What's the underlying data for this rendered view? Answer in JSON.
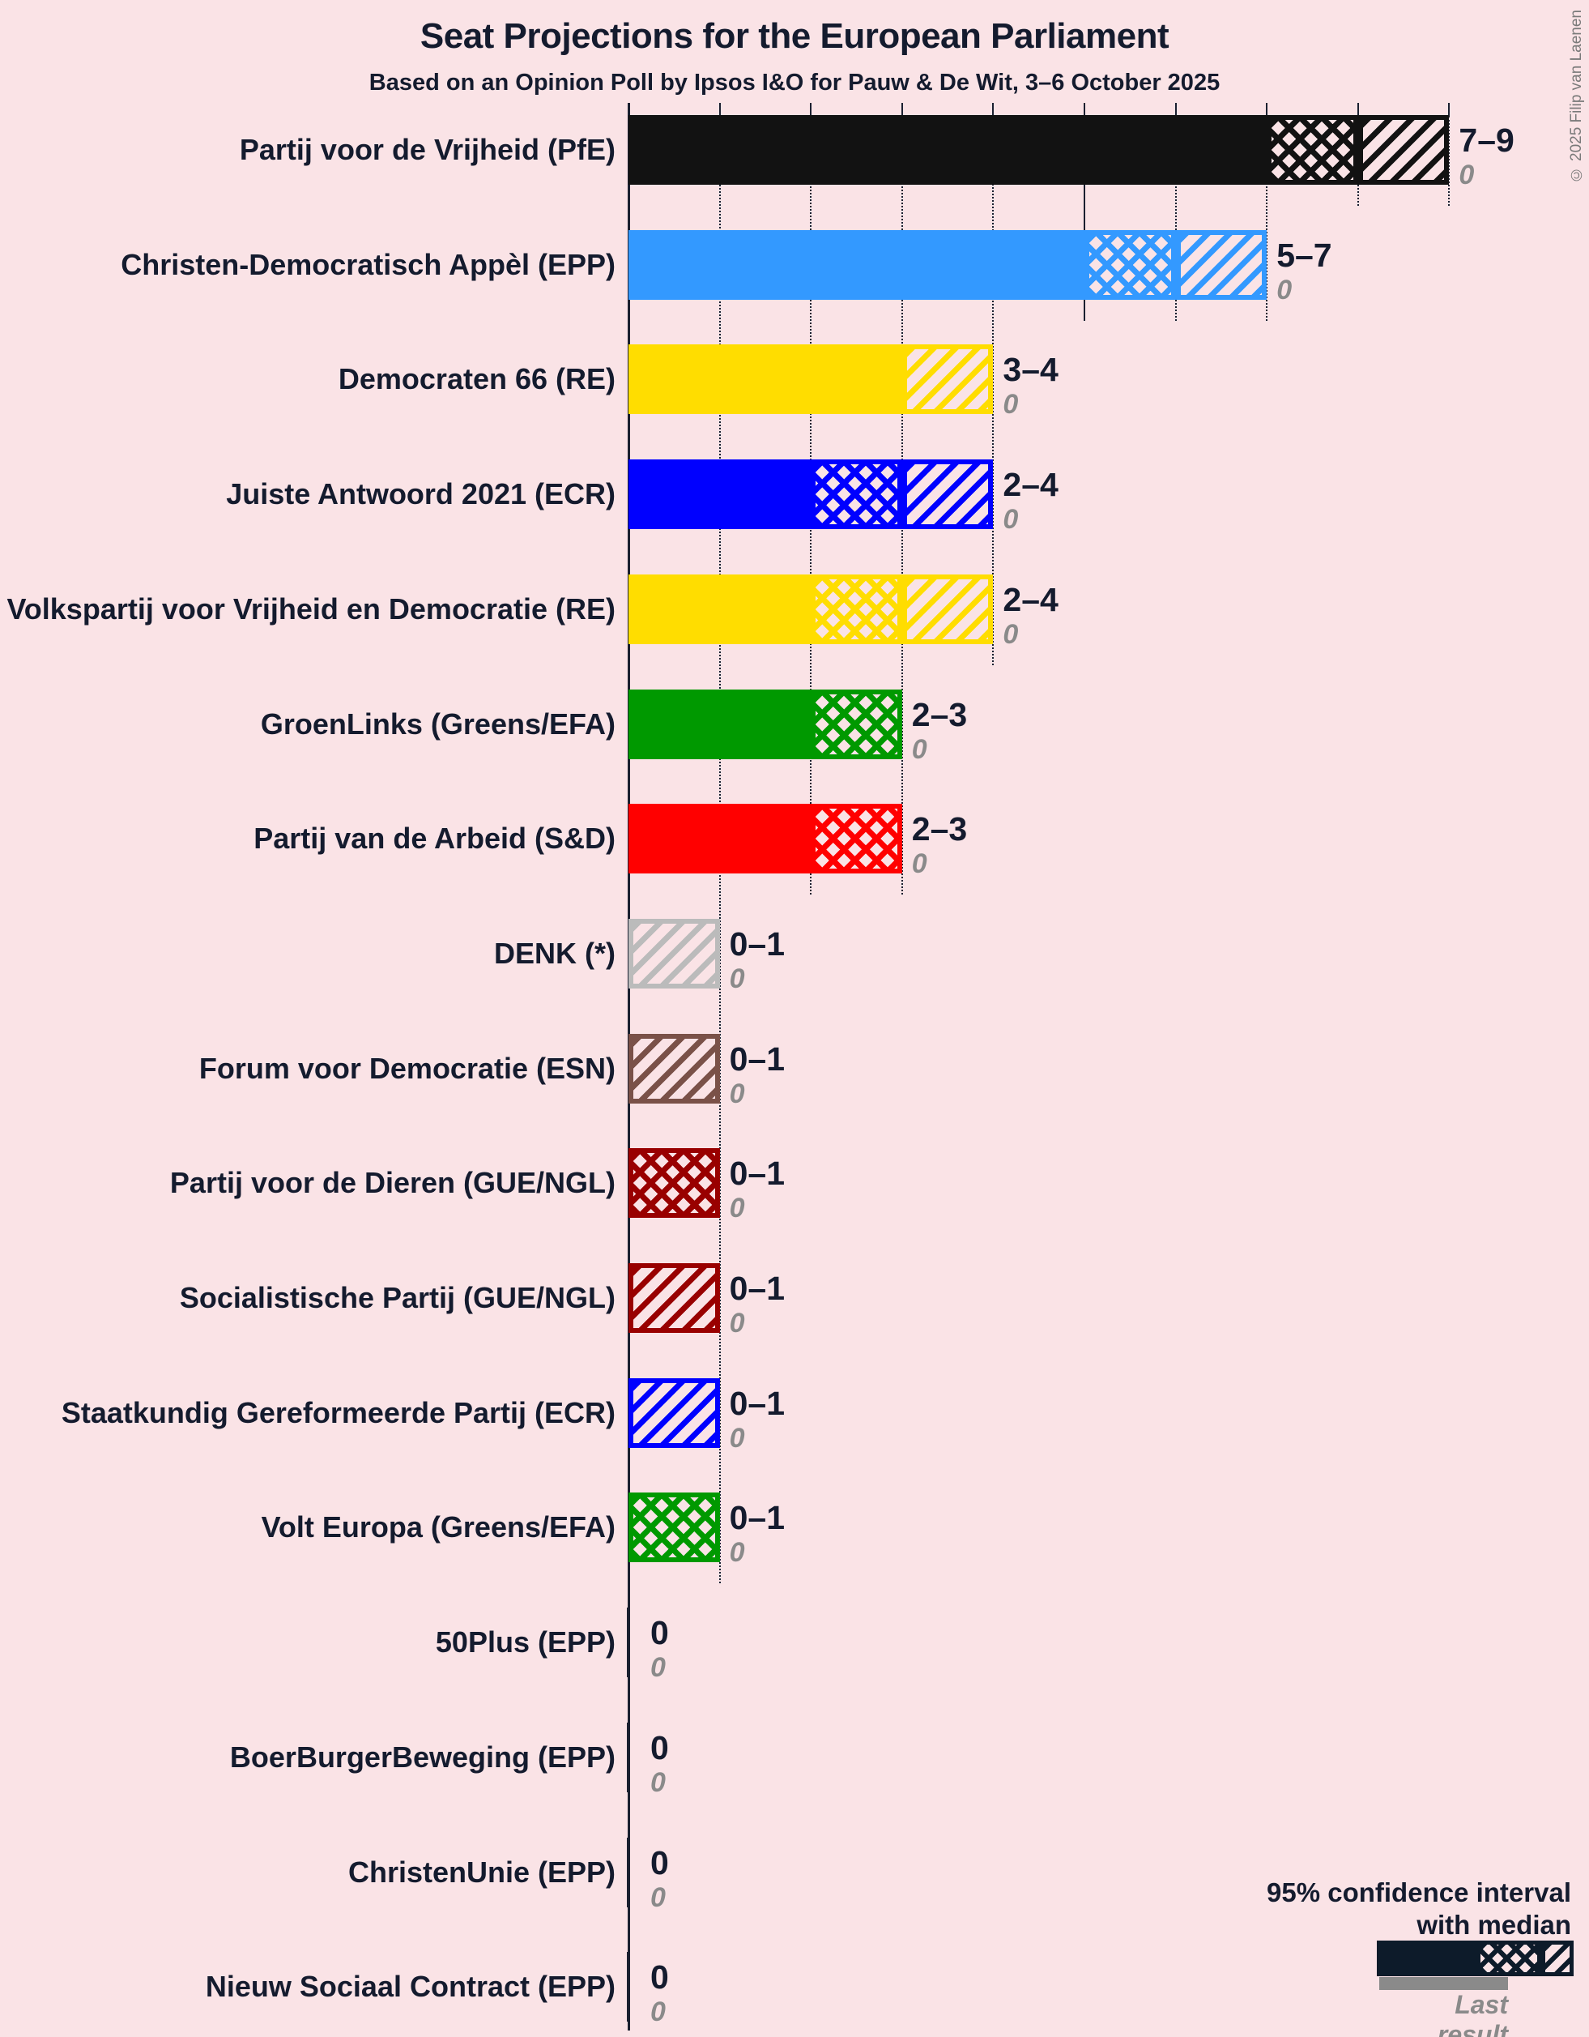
{
  "title": "Seat Projections for the European Parliament",
  "subtitle": "Based on an Opinion Poll by Ipsos I&O for Pauw & De Wit, 3–6 October 2025",
  "copyright": "© 2025 Filip van Laenen",
  "colors": {
    "background": "#fae3e6",
    "text": "#141b2e",
    "muted": "#8a8a8a",
    "axis": "#1a2030",
    "legend_bar": "#0d1b2a"
  },
  "legend": {
    "ci_line1": "95% confidence interval",
    "ci_line2": "with median",
    "last_result_label": "Last result"
  },
  "chart_data": {
    "type": "bar",
    "orientation": "horizontal",
    "unit": "seats",
    "title": "Seat Projections for the European Parliament",
    "subtitle": "Based on an Opinion Poll by Ipsos I&O for Pauw & De Wit, 3–6 October 2025",
    "x_axis": {
      "min": 0,
      "max": 9,
      "gridline_interval": 1,
      "solid_gridline_at": 5,
      "grid": "dotted"
    },
    "series_semantics": "solid = lower bound of 95% CI, crosshatch = lower bound to median, diagonal hatch = median to upper bound, gray underbar = last result",
    "parties": [
      {
        "label": "Partij voor de Vrijheid (PfE)",
        "color": "#121212",
        "ci_low": 7,
        "median": 8,
        "ci_high": 9,
        "range_label": "7–9",
        "last_result": 0
      },
      {
        "label": "Christen-Democratisch Appèl (EPP)",
        "color": "#3399ff",
        "ci_low": 5,
        "median": 6,
        "ci_high": 7,
        "range_label": "5–7",
        "last_result": 0
      },
      {
        "label": "Democraten 66 (RE)",
        "color": "#ffdd00",
        "ci_low": 3,
        "median": 3,
        "ci_high": 4,
        "range_label": "3–4",
        "last_result": 0
      },
      {
        "label": "Juiste Antwoord 2021 (ECR)",
        "color": "#0000ff",
        "ci_low": 2,
        "median": 3,
        "ci_high": 4,
        "range_label": "2–4",
        "last_result": 0
      },
      {
        "label": "Volkspartij voor Vrijheid en Democratie (RE)",
        "color": "#ffdd00",
        "ci_low": 2,
        "median": 3,
        "ci_high": 4,
        "range_label": "2–4",
        "last_result": 0
      },
      {
        "label": "GroenLinks (Greens/EFA)",
        "color": "#009900",
        "ci_low": 2,
        "median": 3,
        "ci_high": 3,
        "range_label": "2–3",
        "last_result": 0
      },
      {
        "label": "Partij van de Arbeid (S&D)",
        "color": "#ff0000",
        "ci_low": 2,
        "median": 3,
        "ci_high": 3,
        "range_label": "2–3",
        "last_result": 0
      },
      {
        "label": "DENK (*)",
        "color": "#bbbbbb",
        "ci_low": 0,
        "median": 0,
        "ci_high": 1,
        "range_label": "0–1",
        "last_result": 0
      },
      {
        "label": "Forum voor Democratie (ESN)",
        "color": "#7a5148",
        "ci_low": 0,
        "median": 0,
        "ci_high": 1,
        "range_label": "0–1",
        "last_result": 0
      },
      {
        "label": "Partij voor de Dieren (GUE/NGL)",
        "color": "#990000",
        "ci_low": 0,
        "median": 1,
        "ci_high": 1,
        "range_label": "0–1",
        "last_result": 0
      },
      {
        "label": "Socialistische Partij (GUE/NGL)",
        "color": "#990000",
        "ci_low": 0,
        "median": 0,
        "ci_high": 1,
        "range_label": "0–1",
        "last_result": 0
      },
      {
        "label": "Staatkundig Gereformeerde Partij (ECR)",
        "color": "#0000ff",
        "ci_low": 0,
        "median": 0,
        "ci_high": 1,
        "range_label": "0–1",
        "last_result": 0
      },
      {
        "label": "Volt Europa (Greens/EFA)",
        "color": "#009900",
        "ci_low": 0,
        "median": 1,
        "ci_high": 1,
        "range_label": "0–1",
        "last_result": 0
      },
      {
        "label": "50Plus (EPP)",
        "color": "#121212",
        "ci_low": 0,
        "median": 0,
        "ci_high": 0,
        "range_label": "0",
        "last_result": 0
      },
      {
        "label": "BoerBurgerBeweging (EPP)",
        "color": "#121212",
        "ci_low": 0,
        "median": 0,
        "ci_high": 0,
        "range_label": "0",
        "last_result": 0
      },
      {
        "label": "ChristenUnie (EPP)",
        "color": "#121212",
        "ci_low": 0,
        "median": 0,
        "ci_high": 0,
        "range_label": "0",
        "last_result": 0
      },
      {
        "label": "Nieuw Sociaal Contract (EPP)",
        "color": "#121212",
        "ci_low": 0,
        "median": 0,
        "ci_high": 0,
        "range_label": "0",
        "last_result": 0
      }
    ]
  }
}
